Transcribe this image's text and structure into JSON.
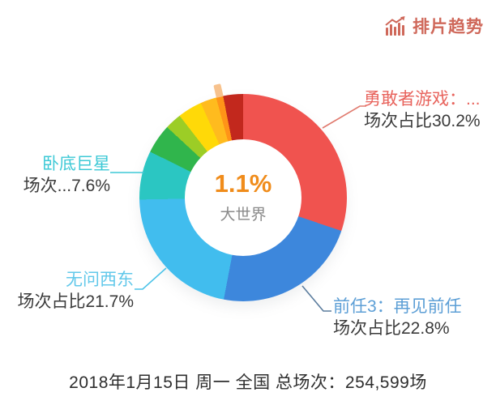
{
  "header": {
    "brand_label": "排片趋势",
    "brand_color": "#cf685a"
  },
  "chart_data": {
    "type": "pie",
    "subtype": "donut",
    "title": "排片趋势",
    "start_angle": "12-oclock",
    "direction": "clockwise",
    "legend_position": "none",
    "values_unit": "percent-of-screenings",
    "center_label": {
      "value": "1.1%",
      "name": "大世界",
      "value_color": "#f08c1b",
      "name_color": "#8a8a8a"
    },
    "selected_slice": {
      "name": "大世界",
      "tab_color": "#f7c28d"
    },
    "series": [
      {
        "name": "勇敢者游戏：...",
        "value": 30.2,
        "color": "#f0534f"
      },
      {
        "name": "前任3：再见前任",
        "value": 22.8,
        "color": "#3d87dc"
      },
      {
        "name": "无问西东",
        "value": 21.7,
        "color": "#41bdee"
      },
      {
        "name": "卧底巨星",
        "value": 7.6,
        "color": "#2bc6c2"
      },
      {
        "name": "",
        "value": 4.6,
        "color": "#30b54c"
      },
      {
        "name": "",
        "value": 2.6,
        "color": "#9ccd26"
      },
      {
        "name": "",
        "value": 3.8,
        "color": "#ffd908"
      },
      {
        "name": "",
        "value": 2.5,
        "color": "#ffbb1e"
      },
      {
        "name": "大世界",
        "value": 1.1,
        "color": "#ff9418",
        "selected": true
      },
      {
        "name": "",
        "value": 3.1,
        "color": "#c2281d"
      }
    ],
    "labels_shown": [
      "勇敢者游戏：...",
      "前任3：再见前任",
      "无问西东",
      "卧底巨星"
    ]
  },
  "labels": {
    "jumanji": {
      "title": "勇敢者游戏：...",
      "subtitle": "场次占比30.2%",
      "color": "#e8635c",
      "line_color": "#e07a6e"
    },
    "qianren3": {
      "title": "前任3：再见前任",
      "subtitle": "场次占比22.8%",
      "color": "#5d9fd6",
      "line_color": "#5c7d9e"
    },
    "wuwenxidong": {
      "title": "无问西东",
      "subtitle": "场次占比21.7%",
      "color": "#62c8ea",
      "line_color": "#4cc3e8"
    },
    "wodijuxing": {
      "title": "卧底巨星",
      "subtitle": "场次...7.6%",
      "color": "#3ec9d6",
      "line_color": "#3fc9d6"
    }
  },
  "footer": {
    "caption": "2018年1月15日 周一 全国 总场次：254,599场"
  }
}
